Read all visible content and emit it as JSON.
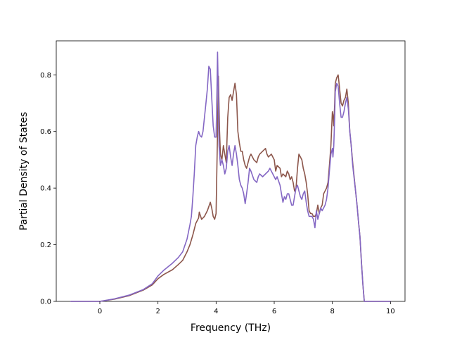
{
  "chart_data": {
    "type": "line",
    "title": "",
    "xlabel": "Frequency (THz)",
    "ylabel": "Partial Density of States",
    "xlim": [
      -1.5,
      10.5
    ],
    "ylim": [
      0.0,
      0.92
    ],
    "xticks": [
      0,
      2,
      4,
      6,
      8,
      10
    ],
    "yticks": [
      0.0,
      0.2,
      0.4,
      0.6,
      0.8
    ],
    "xtick_labels": [
      "0",
      "2",
      "4",
      "6",
      "8",
      "10"
    ],
    "ytick_labels": [
      "0.0",
      "0.2",
      "0.4",
      "0.6",
      "0.8"
    ],
    "grid": false,
    "legend": "none",
    "series": [
      {
        "color": "#8c564b",
        "points": [
          [
            -1.0,
            0.0
          ],
          [
            -0.5,
            0.0
          ],
          [
            0.0,
            0.0
          ],
          [
            0.5,
            0.008
          ],
          [
            1.0,
            0.02
          ],
          [
            1.5,
            0.04
          ],
          [
            1.8,
            0.058
          ],
          [
            2.0,
            0.08
          ],
          [
            2.2,
            0.095
          ],
          [
            2.5,
            0.112
          ],
          [
            2.7,
            0.13
          ],
          [
            2.85,
            0.145
          ],
          [
            3.0,
            0.175
          ],
          [
            3.1,
            0.2
          ],
          [
            3.2,
            0.235
          ],
          [
            3.3,
            0.275
          ],
          [
            3.4,
            0.295
          ],
          [
            3.42,
            0.315
          ],
          [
            3.5,
            0.29
          ],
          [
            3.6,
            0.3
          ],
          [
            3.7,
            0.32
          ],
          [
            3.75,
            0.335
          ],
          [
            3.8,
            0.35
          ],
          [
            3.85,
            0.33
          ],
          [
            3.9,
            0.3
          ],
          [
            3.95,
            0.29
          ],
          [
            4.0,
            0.31
          ],
          [
            4.05,
            0.6
          ],
          [
            4.08,
            0.795
          ],
          [
            4.12,
            0.6
          ],
          [
            4.15,
            0.52
          ],
          [
            4.2,
            0.5
          ],
          [
            4.25,
            0.55
          ],
          [
            4.3,
            0.52
          ],
          [
            4.35,
            0.49
          ],
          [
            4.4,
            0.65
          ],
          [
            4.45,
            0.72
          ],
          [
            4.5,
            0.73
          ],
          [
            4.55,
            0.71
          ],
          [
            4.6,
            0.74
          ],
          [
            4.65,
            0.77
          ],
          [
            4.7,
            0.73
          ],
          [
            4.75,
            0.6
          ],
          [
            4.8,
            0.56
          ],
          [
            4.85,
            0.53
          ],
          [
            4.9,
            0.53
          ],
          [
            4.95,
            0.5
          ],
          [
            5.0,
            0.48
          ],
          [
            5.05,
            0.47
          ],
          [
            5.1,
            0.49
          ],
          [
            5.15,
            0.51
          ],
          [
            5.2,
            0.52
          ],
          [
            5.3,
            0.5
          ],
          [
            5.4,
            0.49
          ],
          [
            5.45,
            0.51
          ],
          [
            5.5,
            0.52
          ],
          [
            5.6,
            0.53
          ],
          [
            5.7,
            0.54
          ],
          [
            5.75,
            0.52
          ],
          [
            5.8,
            0.51
          ],
          [
            5.9,
            0.52
          ],
          [
            6.0,
            0.5
          ],
          [
            6.05,
            0.46
          ],
          [
            6.1,
            0.48
          ],
          [
            6.2,
            0.47
          ],
          [
            6.25,
            0.44
          ],
          [
            6.3,
            0.45
          ],
          [
            6.4,
            0.44
          ],
          [
            6.45,
            0.46
          ],
          [
            6.5,
            0.45
          ],
          [
            6.55,
            0.43
          ],
          [
            6.6,
            0.44
          ],
          [
            6.65,
            0.42
          ],
          [
            6.7,
            0.39
          ],
          [
            6.75,
            0.4
          ],
          [
            6.8,
            0.47
          ],
          [
            6.85,
            0.52
          ],
          [
            6.9,
            0.51
          ],
          [
            6.95,
            0.5
          ],
          [
            7.0,
            0.47
          ],
          [
            7.05,
            0.45
          ],
          [
            7.1,
            0.42
          ],
          [
            7.15,
            0.38
          ],
          [
            7.2,
            0.32
          ],
          [
            7.25,
            0.31
          ],
          [
            7.3,
            0.31
          ],
          [
            7.35,
            0.3
          ],
          [
            7.4,
            0.3
          ],
          [
            7.45,
            0.31
          ],
          [
            7.5,
            0.34
          ],
          [
            7.55,
            0.31
          ],
          [
            7.6,
            0.33
          ],
          [
            7.65,
            0.34
          ],
          [
            7.7,
            0.38
          ],
          [
            7.75,
            0.39
          ],
          [
            7.8,
            0.4
          ],
          [
            7.85,
            0.42
          ],
          [
            7.9,
            0.48
          ],
          [
            7.95,
            0.55
          ],
          [
            8.0,
            0.67
          ],
          [
            8.02,
            0.66
          ],
          [
            8.05,
            0.62
          ],
          [
            8.08,
            0.7
          ],
          [
            8.1,
            0.77
          ],
          [
            8.15,
            0.79
          ],
          [
            8.2,
            0.8
          ],
          [
            8.22,
            0.78
          ],
          [
            8.3,
            0.7
          ],
          [
            8.35,
            0.69
          ],
          [
            8.4,
            0.71
          ],
          [
            8.45,
            0.72
          ],
          [
            8.5,
            0.75
          ],
          [
            8.55,
            0.7
          ],
          [
            8.6,
            0.6
          ],
          [
            8.65,
            0.55
          ],
          [
            8.7,
            0.49
          ],
          [
            8.8,
            0.39
          ],
          [
            8.85,
            0.34
          ],
          [
            8.9,
            0.28
          ],
          [
            8.95,
            0.23
          ],
          [
            9.0,
            0.14
          ],
          [
            9.05,
            0.06
          ],
          [
            9.1,
            0.0
          ],
          [
            9.5,
            0.0
          ],
          [
            10.0,
            0.0
          ]
        ]
      },
      {
        "color": "#8467c4",
        "points": [
          [
            -1.0,
            0.0
          ],
          [
            -0.5,
            0.0
          ],
          [
            0.0,
            0.0
          ],
          [
            0.5,
            0.009
          ],
          [
            1.0,
            0.022
          ],
          [
            1.5,
            0.042
          ],
          [
            1.8,
            0.062
          ],
          [
            2.0,
            0.09
          ],
          [
            2.2,
            0.11
          ],
          [
            2.5,
            0.135
          ],
          [
            2.7,
            0.155
          ],
          [
            2.85,
            0.175
          ],
          [
            3.0,
            0.22
          ],
          [
            3.1,
            0.27
          ],
          [
            3.15,
            0.3
          ],
          [
            3.2,
            0.37
          ],
          [
            3.25,
            0.45
          ],
          [
            3.3,
            0.55
          ],
          [
            3.35,
            0.58
          ],
          [
            3.4,
            0.6
          ],
          [
            3.45,
            0.585
          ],
          [
            3.5,
            0.58
          ],
          [
            3.55,
            0.6
          ],
          [
            3.6,
            0.65
          ],
          [
            3.65,
            0.7
          ],
          [
            3.7,
            0.75
          ],
          [
            3.75,
            0.83
          ],
          [
            3.8,
            0.82
          ],
          [
            3.85,
            0.72
          ],
          [
            3.9,
            0.62
          ],
          [
            3.95,
            0.58
          ],
          [
            4.0,
            0.58
          ],
          [
            4.03,
            0.75
          ],
          [
            4.05,
            0.88
          ],
          [
            4.08,
            0.72
          ],
          [
            4.1,
            0.55
          ],
          [
            4.15,
            0.48
          ],
          [
            4.2,
            0.5
          ],
          [
            4.25,
            0.48
          ],
          [
            4.3,
            0.45
          ],
          [
            4.35,
            0.47
          ],
          [
            4.4,
            0.53
          ],
          [
            4.45,
            0.55
          ],
          [
            4.5,
            0.51
          ],
          [
            4.55,
            0.48
          ],
          [
            4.6,
            0.52
          ],
          [
            4.65,
            0.55
          ],
          [
            4.7,
            0.52
          ],
          [
            4.75,
            0.48
          ],
          [
            4.8,
            0.43
          ],
          [
            4.85,
            0.41
          ],
          [
            4.9,
            0.4
          ],
          [
            4.95,
            0.38
          ],
          [
            5.0,
            0.345
          ],
          [
            5.05,
            0.38
          ],
          [
            5.1,
            0.42
          ],
          [
            5.15,
            0.47
          ],
          [
            5.2,
            0.46
          ],
          [
            5.3,
            0.43
          ],
          [
            5.4,
            0.42
          ],
          [
            5.45,
            0.44
          ],
          [
            5.5,
            0.45
          ],
          [
            5.6,
            0.44
          ],
          [
            5.7,
            0.45
          ],
          [
            5.8,
            0.46
          ],
          [
            5.85,
            0.47
          ],
          [
            5.9,
            0.46
          ],
          [
            6.0,
            0.44
          ],
          [
            6.05,
            0.43
          ],
          [
            6.1,
            0.44
          ],
          [
            6.2,
            0.41
          ],
          [
            6.25,
            0.38
          ],
          [
            6.3,
            0.35
          ],
          [
            6.35,
            0.37
          ],
          [
            6.4,
            0.36
          ],
          [
            6.45,
            0.38
          ],
          [
            6.5,
            0.38
          ],
          [
            6.55,
            0.36
          ],
          [
            6.6,
            0.34
          ],
          [
            6.65,
            0.34
          ],
          [
            6.7,
            0.37
          ],
          [
            6.75,
            0.4
          ],
          [
            6.8,
            0.41
          ],
          [
            6.85,
            0.39
          ],
          [
            6.9,
            0.37
          ],
          [
            6.95,
            0.36
          ],
          [
            7.0,
            0.38
          ],
          [
            7.05,
            0.39
          ],
          [
            7.1,
            0.35
          ],
          [
            7.15,
            0.32
          ],
          [
            7.2,
            0.3
          ],
          [
            7.25,
            0.3
          ],
          [
            7.3,
            0.3
          ],
          [
            7.35,
            0.29
          ],
          [
            7.4,
            0.26
          ],
          [
            7.45,
            0.32
          ],
          [
            7.5,
            0.29
          ],
          [
            7.55,
            0.31
          ],
          [
            7.6,
            0.33
          ],
          [
            7.65,
            0.32
          ],
          [
            7.7,
            0.33
          ],
          [
            7.75,
            0.34
          ],
          [
            7.8,
            0.36
          ],
          [
            7.85,
            0.4
          ],
          [
            7.9,
            0.46
          ],
          [
            7.95,
            0.52
          ],
          [
            8.0,
            0.54
          ],
          [
            8.02,
            0.51
          ],
          [
            8.05,
            0.55
          ],
          [
            8.08,
            0.65
          ],
          [
            8.1,
            0.74
          ],
          [
            8.15,
            0.77
          ],
          [
            8.2,
            0.76
          ],
          [
            8.25,
            0.7
          ],
          [
            8.3,
            0.65
          ],
          [
            8.35,
            0.65
          ],
          [
            8.4,
            0.67
          ],
          [
            8.45,
            0.7
          ],
          [
            8.5,
            0.72
          ],
          [
            8.55,
            0.68
          ],
          [
            8.6,
            0.6
          ],
          [
            8.65,
            0.55
          ],
          [
            8.7,
            0.48
          ],
          [
            8.8,
            0.39
          ],
          [
            8.85,
            0.34
          ],
          [
            8.9,
            0.28
          ],
          [
            8.95,
            0.23
          ],
          [
            9.0,
            0.14
          ],
          [
            9.05,
            0.06
          ],
          [
            9.1,
            0.0
          ],
          [
            9.5,
            0.0
          ],
          [
            10.0,
            0.0
          ]
        ]
      }
    ]
  }
}
